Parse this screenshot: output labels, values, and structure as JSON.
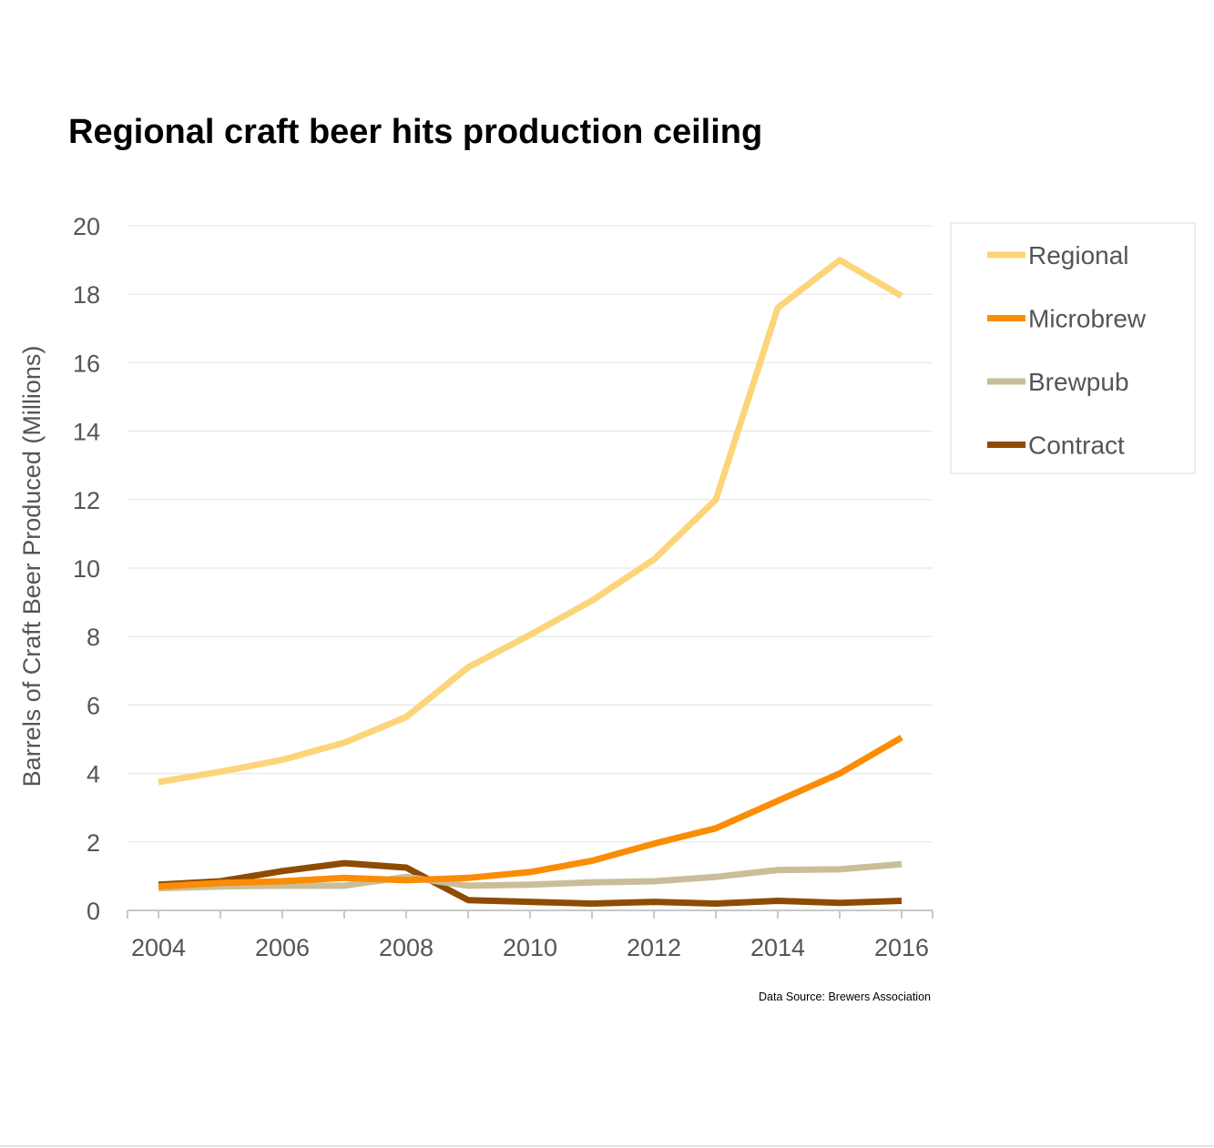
{
  "chart_data": {
    "type": "line",
    "title": "Regional craft beer hits production ceiling",
    "xlabel": "",
    "ylabel": "Barrels of Craft Beer Produced (Millions)",
    "ylim": [
      0,
      20
    ],
    "xlim": [
      2004,
      2016
    ],
    "x": [
      2004,
      2005,
      2006,
      2007,
      2008,
      2009,
      2010,
      2011,
      2012,
      2013,
      2014,
      2015,
      2016
    ],
    "x_ticks": [
      "2004",
      "2006",
      "2008",
      "2010",
      "2012",
      "2014",
      "2016"
    ],
    "y_ticks": [
      "0",
      "2",
      "4",
      "6",
      "8",
      "10",
      "12",
      "14",
      "16",
      "18",
      "20"
    ],
    "grid": "horizontal",
    "legend_position": "right",
    "source": "Data Source: Brewers Association",
    "series": [
      {
        "name": "Regional",
        "color": "#FCD57A",
        "values": [
          3.75,
          4.05,
          4.4,
          4.9,
          5.65,
          7.1,
          8.05,
          9.05,
          10.25,
          12.0,
          17.6,
          19.0,
          17.95
        ]
      },
      {
        "name": "Microbrew",
        "color": "#FB8C05",
        "values": [
          0.7,
          0.8,
          0.85,
          0.95,
          0.88,
          0.95,
          1.12,
          1.45,
          1.95,
          2.4,
          3.2,
          4.0,
          5.05
        ]
      },
      {
        "name": "Brewpub",
        "color": "#C9BE99",
        "values": [
          0.65,
          0.7,
          0.72,
          0.72,
          0.98,
          0.72,
          0.75,
          0.82,
          0.85,
          0.98,
          1.18,
          1.2,
          1.35
        ]
      },
      {
        "name": "Contract",
        "color": "#8E4B03",
        "values": [
          0.75,
          0.85,
          1.15,
          1.38,
          1.25,
          0.3,
          0.25,
          0.2,
          0.25,
          0.2,
          0.28,
          0.22,
          0.28
        ]
      }
    ]
  }
}
